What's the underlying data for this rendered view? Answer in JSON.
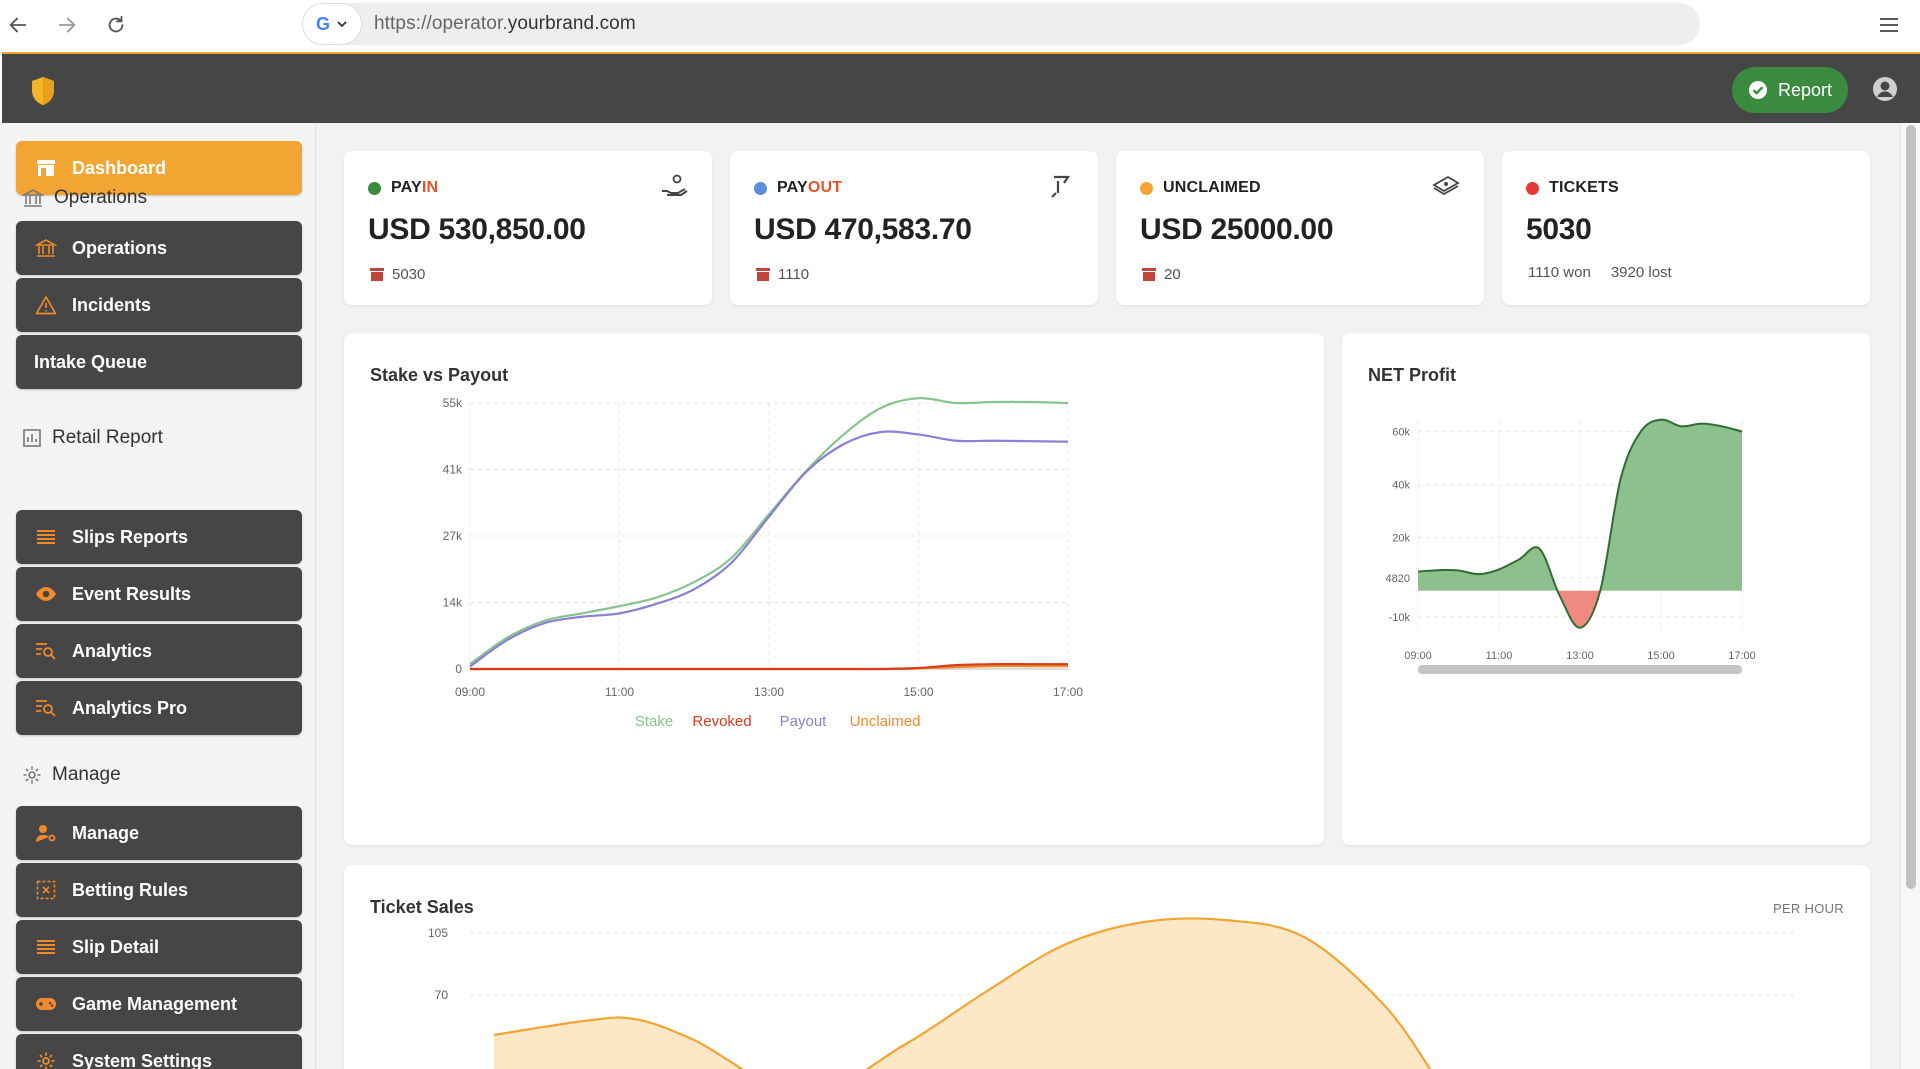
{
  "browser": {
    "url_prefix": "https://operator.",
    "url_domain": "yourbrand.com"
  },
  "header": {
    "report_label": "Report"
  },
  "sidebar": {
    "dashboard": "Dashboard",
    "sections": [
      {
        "label": "Operations",
        "items": [
          "Operations",
          "Incidents",
          "Intake Queue"
        ]
      },
      {
        "label": "Retail Report",
        "items": [
          "Slips Reports",
          "Event Results",
          "Analytics",
          "Analytics Pro"
        ]
      },
      {
        "label": "Manage",
        "items": [
          "Manage",
          "Betting Rules",
          "Slip Detail",
          "Game Management",
          "System Settings"
        ]
      }
    ]
  },
  "kpis": [
    {
      "label_a": "PAY",
      "label_b": "IN",
      "value": "USD 530,850.00",
      "sub": "5030",
      "dot_color": "#3a8b3f",
      "accent": "#e0562a"
    },
    {
      "label_a": "PAY",
      "label_b": "OUT",
      "value": "USD 470,583.70",
      "sub": "1110",
      "dot_color": "#5b8fd9",
      "accent": "#e0562a"
    },
    {
      "label_a": "UNCLAIMED",
      "label_b": "",
      "value": "USD 25000.00",
      "sub": "20",
      "dot_color": "#f3a534",
      "accent": "#e0562a"
    },
    {
      "label_a": "TICKETS",
      "label_b": "",
      "value": "5030",
      "sub_won": "1110 won",
      "sub_lost": "3920 lost",
      "dot_color": "#e53935",
      "accent": "#e0562a"
    }
  ],
  "colors": {
    "accent_orange": "#f3a534",
    "header_dark": "#464646",
    "stake": "#86c48f",
    "revoked": "#d83a1c",
    "payout": "#8b7fd6",
    "unclaimed": "#f08a2a",
    "net_positive": "#8cc08c",
    "net_negative": "#ef8a80"
  },
  "chart_data": [
    {
      "type": "line",
      "title": "Stake vs Payout",
      "x": [
        "09:00",
        "09:30",
        "10:00",
        "10:30",
        "11:00",
        "11:30",
        "12:00",
        "12:30",
        "13:00",
        "13:30",
        "14:00",
        "14:30",
        "15:00",
        "15:30",
        "16:00",
        "16:30",
        "17:00"
      ],
      "x_ticks": [
        "09:00",
        "11:00",
        "13:00",
        "15:00",
        "17:00"
      ],
      "y_ticks": [
        "0",
        "14k",
        "27k",
        "41k",
        "55k"
      ],
      "ylim": [
        0,
        55000
      ],
      "series": [
        {
          "name": "Stake",
          "values": [
            1000,
            6500,
            10000,
            11500,
            13000,
            14800,
            18000,
            23000,
            32000,
            41000,
            48500,
            54000,
            56000,
            55000,
            55200,
            55200,
            55000
          ]
        },
        {
          "name": "Revoked",
          "values": [
            0,
            0,
            0,
            0,
            0,
            0,
            0,
            0,
            0,
            0,
            0,
            0,
            200,
            800,
            1000,
            1000,
            1000
          ]
        },
        {
          "name": "Payout",
          "values": [
            500,
            6000,
            9500,
            10800,
            11500,
            13500,
            16500,
            22000,
            31500,
            40800,
            46500,
            49000,
            48500,
            47200,
            47200,
            47100,
            47000
          ]
        },
        {
          "name": "Unclaimed",
          "values": [
            0,
            0,
            0,
            0,
            0,
            0,
            0,
            0,
            0,
            0,
            0,
            0,
            100,
            400,
            600,
            600,
            600
          ]
        }
      ],
      "legend": "bottom"
    },
    {
      "type": "area",
      "title": "NET Profit",
      "x": [
        "09:00",
        "09:30",
        "10:00",
        "10:30",
        "11:00",
        "11:30",
        "12:00",
        "12:30",
        "13:00",
        "13:30",
        "14:00",
        "14:30",
        "15:00",
        "15:30",
        "16:00",
        "16:30",
        "17:00"
      ],
      "x_ticks": [
        "09:00",
        "11:00",
        "13:00",
        "15:00",
        "17:00"
      ],
      "y_ticks": [
        "-10k",
        "4820",
        "20k",
        "40k",
        "60k"
      ],
      "ylim": [
        -16000,
        64000
      ],
      "baseline": 0,
      "values": [
        7200,
        7700,
        7600,
        6200,
        8000,
        11800,
        15800,
        -2000,
        -14000,
        0,
        42000,
        60000,
        64500,
        62000,
        63000,
        62000,
        60000
      ],
      "scrollbar": true
    },
    {
      "type": "area",
      "title": "Ticket Sales",
      "subtitle": "PER HOUR",
      "y_ticks": [
        "70",
        "105"
      ],
      "series_color": "#f3a534"
    }
  ]
}
